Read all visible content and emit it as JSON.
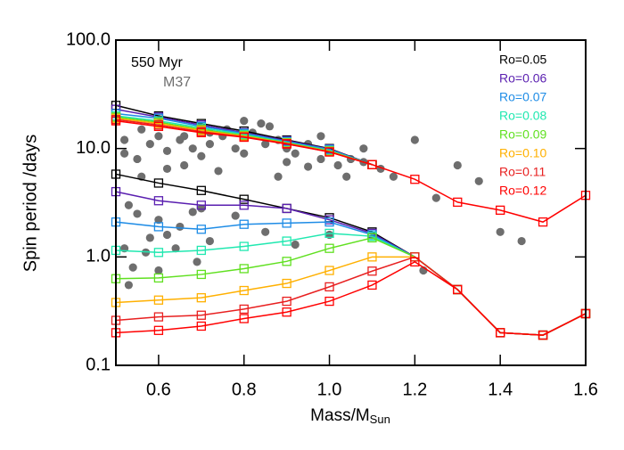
{
  "chart_data": {
    "type": "line",
    "xlabel": "Mass/M",
    "xlabel_sub": "Sun",
    "ylabel": "Spin period /days",
    "annotation": "550 Myr",
    "x": [
      0.5,
      0.6,
      0.7,
      0.8,
      0.9,
      1.0,
      1.1,
      1.2,
      1.3,
      1.4,
      1.5,
      1.6
    ],
    "xlim": [
      0.5,
      1.6
    ],
    "xticks": [
      0.6,
      0.8,
      {
        "value": 1.0,
        "label": "1.0"
      },
      1.2,
      1.4,
      1.6
    ],
    "ylim": [
      0.1,
      100
    ],
    "yticks": [
      0.1,
      {
        "value": 1,
        "label": "1.0"
      },
      {
        "value": 10,
        "label": "10.0"
      },
      {
        "value": 100,
        "label": "100.0"
      }
    ],
    "log_y": true,
    "observed": {
      "name": "M37",
      "color": "#6e6e6e",
      "x": [
        0.52,
        0.55,
        0.58,
        0.62,
        0.65,
        0.68,
        0.7,
        0.72,
        0.75,
        0.78,
        0.8,
        0.82,
        0.85,
        0.88,
        0.9,
        0.92,
        0.95,
        0.98,
        1.0,
        1.02,
        1.05,
        1.08,
        1.12,
        1.15,
        0.84,
        0.8,
        0.86,
        0.76,
        0.9,
        0.95,
        0.62,
        0.66,
        0.74,
        0.56,
        0.53,
        0.55,
        0.6,
        0.65,
        0.58,
        0.52,
        0.57,
        0.62,
        0.68,
        0.7,
        0.72,
        0.54,
        0.6,
        0.53,
        0.64,
        0.69,
        0.78,
        0.85,
        0.92,
        1.0,
        1.22,
        1.25,
        1.3,
        1.35,
        1.45,
        1.4,
        1.2,
        0.98,
        1.08,
        0.72,
        0.66,
        0.6,
        0.52,
        0.56,
        0.88,
        1.04
      ],
      "y": [
        9,
        8,
        11,
        9.5,
        12,
        10,
        8.5,
        11,
        13,
        10,
        9,
        14,
        11,
        12,
        10,
        9,
        11,
        8,
        9.5,
        7,
        8,
        7.5,
        6.5,
        5.5,
        17,
        18,
        16,
        15,
        7.5,
        6.8,
        6.5,
        7,
        6.2,
        5.5,
        3,
        2.5,
        2.2,
        1.9,
        1.5,
        1.2,
        1.1,
        1.6,
        2.6,
        2.8,
        1.4,
        0.8,
        0.75,
        0.55,
        1.2,
        0.9,
        2.4,
        1.7,
        1.3,
        1.6,
        0.75,
        3.5,
        7,
        5,
        1.4,
        1.7,
        12,
        13,
        10,
        14,
        13,
        13,
        12,
        15,
        5.5,
        5.5
      ]
    },
    "series": [
      {
        "name": "Ro=0.05",
        "color": "#000000",
        "values": [
          5.8,
          4.8,
          4.1,
          3.4,
          2.8,
          2.3,
          1.7,
          1.0,
          0.5,
          0.2,
          0.19,
          0.3
        ],
        "upper": [
          25,
          20,
          17,
          14.5,
          12,
          10,
          7.1,
          null,
          null,
          null,
          null,
          null
        ]
      },
      {
        "name": "Ro=0.06",
        "color": "#5a1fb0",
        "values": [
          4.0,
          3.3,
          3.0,
          3.0,
          2.8,
          2.2,
          1.65,
          1.0,
          0.5,
          0.2,
          0.19,
          0.3
        ],
        "upper": [
          23,
          19.5,
          16.5,
          14,
          11.8,
          9.9,
          7.1,
          null,
          null,
          null,
          null,
          null
        ]
      },
      {
        "name": "Ro=0.07",
        "color": "#1e8ce6",
        "values": [
          2.1,
          1.9,
          1.8,
          2.0,
          2.05,
          2.1,
          1.6,
          1.0,
          0.5,
          0.2,
          0.19,
          0.3
        ],
        "upper": [
          21,
          19,
          16,
          13.8,
          11.6,
          9.8,
          7.1,
          null,
          null,
          null,
          null,
          null
        ]
      },
      {
        "name": "Ro=0.08",
        "color": "#20e8b0",
        "values": [
          1.15,
          1.1,
          1.15,
          1.25,
          1.4,
          1.65,
          1.55,
          1.0,
          0.5,
          0.2,
          0.19,
          0.3
        ],
        "upper": [
          20,
          18,
          15.5,
          13.5,
          11.4,
          9.6,
          7.1,
          null,
          null,
          null,
          null,
          null
        ]
      },
      {
        "name": "Ro=0.09",
        "color": "#60e020",
        "values": [
          0.63,
          0.64,
          0.69,
          0.78,
          0.91,
          1.2,
          1.5,
          1.0,
          0.5,
          0.2,
          0.19,
          0.3
        ],
        "upper": [
          19.5,
          17.5,
          15,
          13.2,
          11.3,
          9.5,
          7.1,
          null,
          null,
          null,
          null,
          null
        ]
      },
      {
        "name": "Ro=0.10",
        "color": "#ffb000",
        "values": [
          0.38,
          0.4,
          0.42,
          0.49,
          0.57,
          0.75,
          1.0,
          1.0,
          0.5,
          0.2,
          0.19,
          0.3
        ],
        "upper": [
          19,
          17,
          14.7,
          13,
          11.2,
          9.4,
          7.1,
          null,
          null,
          null,
          null,
          null
        ]
      },
      {
        "name": "Ro=0.11",
        "color": "#e82020",
        "values": [
          0.26,
          0.28,
          0.29,
          0.33,
          0.39,
          0.53,
          0.74,
          1.0,
          0.5,
          0.2,
          0.19,
          0.3
        ],
        "upper": [
          18.5,
          16.5,
          14.3,
          12.8,
          11.1,
          9.3,
          7.1,
          null,
          null,
          null,
          null,
          null
        ]
      },
      {
        "name": "Ro=0.12",
        "color": "#ff0000",
        "values": [
          0.2,
          0.21,
          0.23,
          0.27,
          0.31,
          0.39,
          0.55,
          0.9,
          0.5,
          0.2,
          0.19,
          0.3
        ],
        "upper": [
          18,
          16,
          14,
          12.7,
          11,
          9.3,
          7.1,
          5.2,
          3.2,
          2.7,
          2.1,
          3.7
        ]
      }
    ]
  }
}
